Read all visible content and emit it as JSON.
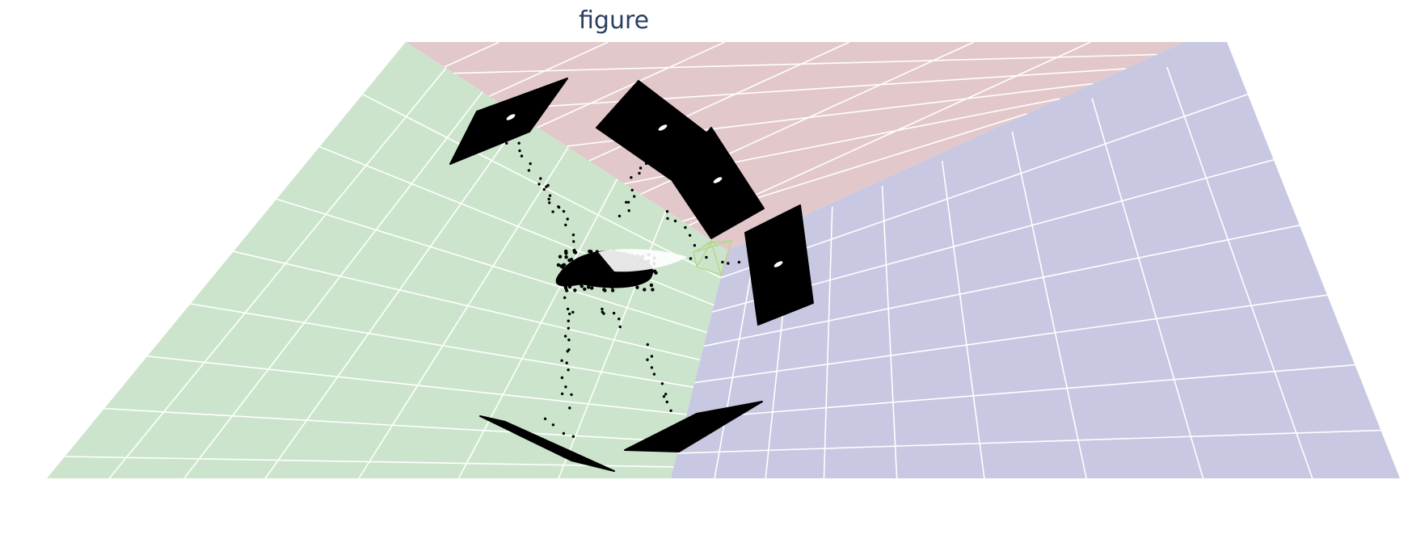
{
  "chart_data": {
    "type": "scatter3d",
    "title": "figure",
    "walls": {
      "left": {
        "color": "#cce4cc"
      },
      "back": {
        "color": "#e2c8ca"
      },
      "right": {
        "color": "#c8c8e2"
      }
    },
    "grid": true,
    "grid_color": "#ffffff",
    "marker_color": "#000000",
    "camera_frustum_color": "#b5d88c",
    "image_planes": 6,
    "legend": "none"
  }
}
